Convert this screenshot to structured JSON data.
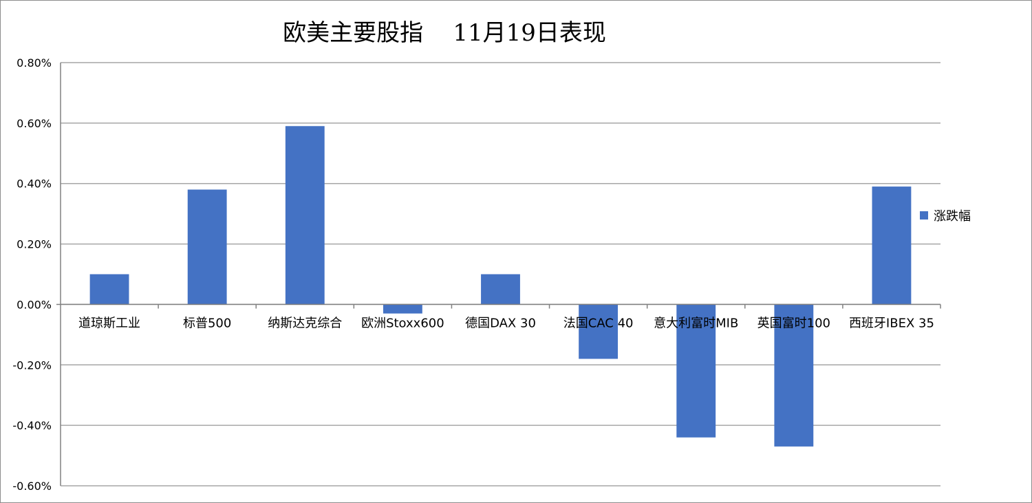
{
  "chart_data": {
    "type": "bar",
    "title": "欧美主要股指    11月19日表现",
    "xlabel": "",
    "ylabel": "",
    "categories": [
      "道琼斯工业",
      "标普500",
      "纳斯达克综合",
      "欧洲Stoxx600",
      "德国DAX 30",
      "法国CAC 40",
      "意大利富时MIB",
      "英国富时100",
      "西班牙IBEX 35"
    ],
    "series": [
      {
        "name": "涨跌幅",
        "values": [
          0.1,
          0.38,
          0.59,
          -0.03,
          0.1,
          -0.18,
          -0.44,
          -0.47,
          0.39
        ]
      }
    ],
    "ylim": [
      -0.6,
      0.8
    ],
    "yticks": [
      0.8,
      0.6,
      0.4,
      0.2,
      0.0,
      -0.2,
      -0.4,
      -0.6
    ],
    "ytick_labels": [
      "0.80%",
      "0.60%",
      "0.40%",
      "0.20%",
      "0.00%",
      "-0.20%",
      "-0.40%",
      "-0.60%"
    ],
    "grid": true,
    "legend_position": "right",
    "bar_color": "#4472C4",
    "grid_color": "#A6A6A6"
  }
}
